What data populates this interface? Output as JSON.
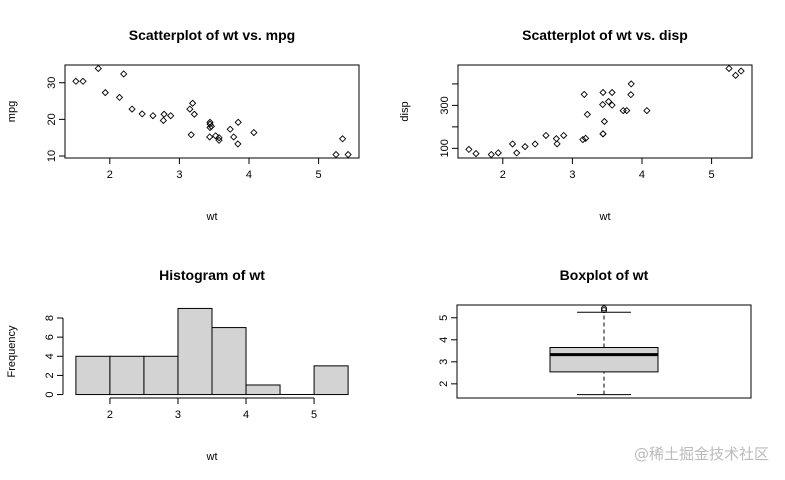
{
  "chart_data": [
    {
      "type": "scatter",
      "title": "Scatterplot of wt vs. mpg",
      "xlabel": "wt",
      "ylabel": "mpg",
      "xticks": [
        2,
        3,
        4,
        5
      ],
      "yticks": [
        10,
        20,
        30
      ],
      "x": [
        2.62,
        2.875,
        2.32,
        3.215,
        3.44,
        3.46,
        3.57,
        3.19,
        3.15,
        3.44,
        3.44,
        4.07,
        3.73,
        3.78,
        5.25,
        5.424,
        5.345,
        2.2,
        1.615,
        1.835,
        2.465,
        3.52,
        3.435,
        3.84,
        3.845,
        1.935,
        2.14,
        1.513,
        3.17,
        2.77,
        3.57,
        2.78
      ],
      "y": [
        21,
        21,
        22.8,
        21.4,
        18.7,
        18.1,
        14.3,
        24.4,
        22.8,
        19.2,
        17.8,
        16.4,
        17.3,
        15.2,
        10.4,
        10.4,
        14.7,
        32.4,
        30.4,
        33.9,
        21.5,
        15.5,
        15.2,
        13.3,
        19.2,
        27.3,
        26,
        30.4,
        15.8,
        19.7,
        15,
        21.4
      ]
    },
    {
      "type": "scatter",
      "title": "Scatterplot of wt vs. disp",
      "xlabel": "wt",
      "ylabel": "disp",
      "xticks": [
        2,
        3,
        4,
        5
      ],
      "yticks": [
        100,
        200,
        300,
        400
      ],
      "ytick_labels": [
        "100",
        "",
        "300",
        ""
      ],
      "x": [
        2.62,
        2.875,
        2.32,
        3.215,
        3.44,
        3.46,
        3.57,
        3.19,
        3.15,
        3.44,
        3.44,
        4.07,
        3.73,
        3.78,
        5.25,
        5.424,
        5.345,
        2.2,
        1.615,
        1.835,
        2.465,
        3.52,
        3.435,
        3.84,
        3.845,
        1.935,
        2.14,
        1.513,
        3.17,
        2.77,
        3.57,
        2.78
      ],
      "y": [
        160,
        160,
        108,
        258,
        360,
        225,
        360,
        146.7,
        140.8,
        167.6,
        167.6,
        275.8,
        275.8,
        275.8,
        472,
        460,
        440,
        78.7,
        75.7,
        71.1,
        120.1,
        318,
        304,
        350,
        400,
        79,
        120.3,
        95.1,
        351,
        145,
        301,
        121
      ]
    },
    {
      "type": "bar",
      "title": "Histogram of wt",
      "xlabel": "wt",
      "ylabel": "Frequency",
      "breaks": [
        1.5,
        2,
        2.5,
        3,
        3.5,
        4,
        4.5,
        5,
        5.5
      ],
      "values": [
        4,
        4,
        4,
        9,
        7,
        1,
        0,
        3
      ],
      "xticks": [
        2,
        3,
        4,
        5
      ],
      "yticks": [
        0,
        2,
        4,
        6,
        8
      ],
      "xlim": [
        1.5,
        5.5
      ],
      "ylim": [
        0,
        9
      ],
      "fill": "#d3d3d3"
    },
    {
      "type": "boxplot",
      "title": "Boxplot of wt",
      "min": 1.513,
      "q1": 2.5425,
      "median": 3.325,
      "q3": 3.65,
      "whisker_high": 5.25,
      "outliers": [
        5.345,
        5.424
      ],
      "yticks": [
        2,
        3,
        4,
        5
      ],
      "ylim": [
        1.357,
        5.58
      ],
      "fill": "#d3d3d3"
    }
  ],
  "watermark": "@稀土掘金技术社区"
}
